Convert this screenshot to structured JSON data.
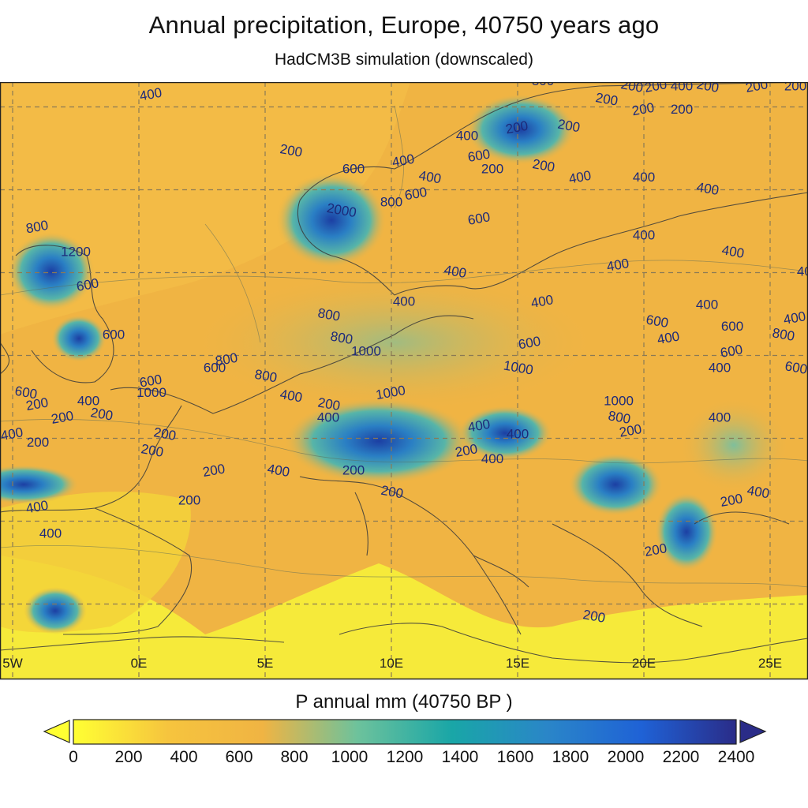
{
  "title": "Annual precipitation, Europe, 40750 years ago",
  "subtitle": "HadCM3B simulation (downscaled)",
  "map": {
    "lon_range": [
      -5.5,
      26.5
    ],
    "lat_range": [
      35.5,
      71.5
    ],
    "gridlines": "dashed",
    "lon_labels": [
      "5W",
      "0E",
      "5E",
      "10E",
      "15E",
      "20E",
      "25E"
    ],
    "lon_label_values": [
      -5,
      0,
      5,
      10,
      15,
      20,
      25
    ],
    "contour_labels": [
      {
        "text": "400",
        "lon": 0.5,
        "lat": 70.5
      },
      {
        "text": "800",
        "lon": 16.0,
        "lat": 71.3
      },
      {
        "text": "200",
        "lon": 19.5,
        "lat": 71.0
      },
      {
        "text": "200",
        "lon": 20.5,
        "lat": 71.0
      },
      {
        "text": "400",
        "lon": 21.5,
        "lat": 71.0
      },
      {
        "text": "200",
        "lon": 22.5,
        "lat": 71.0
      },
      {
        "text": "200",
        "lon": 24.5,
        "lat": 71.0
      },
      {
        "text": "200",
        "lon": 26.0,
        "lat": 71.0
      },
      {
        "text": "200",
        "lon": 18.5,
        "lat": 70.2
      },
      {
        "text": "200",
        "lon": 20.0,
        "lat": 69.6
      },
      {
        "text": "200",
        "lon": 21.5,
        "lat": 69.6
      },
      {
        "text": "200",
        "lon": 17.0,
        "lat": 68.6
      },
      {
        "text": "200",
        "lon": 15.0,
        "lat": 68.5
      },
      {
        "text": "400",
        "lon": 13.0,
        "lat": 68.0
      },
      {
        "text": "200",
        "lon": 6.0,
        "lat": 67.1
      },
      {
        "text": "600",
        "lon": 13.5,
        "lat": 66.8
      },
      {
        "text": "200",
        "lon": 14.0,
        "lat": 66.0
      },
      {
        "text": "200",
        "lon": 16.0,
        "lat": 66.2
      },
      {
        "text": "400",
        "lon": 10.5,
        "lat": 66.5
      },
      {
        "text": "600",
        "lon": 8.5,
        "lat": 66.0
      },
      {
        "text": "400",
        "lon": 11.5,
        "lat": 65.5
      },
      {
        "text": "400",
        "lon": 17.5,
        "lat": 65.5
      },
      {
        "text": "400",
        "lon": 20.0,
        "lat": 65.5
      },
      {
        "text": "400",
        "lon": 22.5,
        "lat": 64.8
      },
      {
        "text": "600",
        "lon": 11.0,
        "lat": 64.5
      },
      {
        "text": "800",
        "lon": 10.0,
        "lat": 64.0
      },
      {
        "text": "2000",
        "lon": 8.0,
        "lat": 63.5
      },
      {
        "text": "600",
        "lon": 13.5,
        "lat": 63.0
      },
      {
        "text": "400",
        "lon": 20.0,
        "lat": 62.0
      },
      {
        "text": "400",
        "lon": 27.0,
        "lat": 63.0
      },
      {
        "text": "800",
        "lon": -4.0,
        "lat": 62.5
      },
      {
        "text": "1200",
        "lon": -2.5,
        "lat": 61.0
      },
      {
        "text": "400",
        "lon": 23.5,
        "lat": 61.0
      },
      {
        "text": "400",
        "lon": 19.0,
        "lat": 60.2
      },
      {
        "text": "400",
        "lon": 26.5,
        "lat": 59.8
      },
      {
        "text": "400",
        "lon": 12.5,
        "lat": 59.8
      },
      {
        "text": "600",
        "lon": -2.0,
        "lat": 59.0
      },
      {
        "text": "400",
        "lon": 10.5,
        "lat": 58.0
      },
      {
        "text": "800",
        "lon": 7.5,
        "lat": 57.2
      },
      {
        "text": "400",
        "lon": 16.0,
        "lat": 58.0
      },
      {
        "text": "400",
        "lon": 22.5,
        "lat": 57.8
      },
      {
        "text": "600",
        "lon": 20.5,
        "lat": 56.8
      },
      {
        "text": "400",
        "lon": 21.0,
        "lat": 55.8
      },
      {
        "text": "600",
        "lon": 23.5,
        "lat": 56.5
      },
      {
        "text": "800",
        "lon": 25.5,
        "lat": 56.0
      },
      {
        "text": "400",
        "lon": 26.0,
        "lat": 57.0
      },
      {
        "text": "600",
        "lon": -1.0,
        "lat": 56.0
      },
      {
        "text": "800",
        "lon": 8.0,
        "lat": 55.8
      },
      {
        "text": "600",
        "lon": 15.5,
        "lat": 55.5
      },
      {
        "text": "1000",
        "lon": 9.0,
        "lat": 55.0
      },
      {
        "text": "1000",
        "lon": 15.0,
        "lat": 54.0
      },
      {
        "text": "800",
        "lon": 3.5,
        "lat": 54.5
      },
      {
        "text": "600",
        "lon": 3.0,
        "lat": 54.0
      },
      {
        "text": "800",
        "lon": 5.0,
        "lat": 53.5
      },
      {
        "text": "600",
        "lon": 23.5,
        "lat": 55.0
      },
      {
        "text": "400",
        "lon": 23.0,
        "lat": 54.0
      },
      {
        "text": "600",
        "lon": 26.0,
        "lat": 54.0
      },
      {
        "text": "600",
        "lon": 0.5,
        "lat": 53.2
      },
      {
        "text": "1000",
        "lon": 0.5,
        "lat": 52.5
      },
      {
        "text": "400",
        "lon": 6.0,
        "lat": 52.3
      },
      {
        "text": "1000",
        "lon": 10.0,
        "lat": 52.5
      },
      {
        "text": "1000",
        "lon": 19.0,
        "lat": 52.0
      },
      {
        "text": "600",
        "lon": -4.5,
        "lat": 52.5
      },
      {
        "text": "200",
        "lon": -4.0,
        "lat": 51.8
      },
      {
        "text": "400",
        "lon": -2.0,
        "lat": 52.0
      },
      {
        "text": "200",
        "lon": -1.5,
        "lat": 51.2
      },
      {
        "text": "200",
        "lon": -3.0,
        "lat": 51.0
      },
      {
        "text": "400",
        "lon": 7.5,
        "lat": 51.0
      },
      {
        "text": "200",
        "lon": 7.5,
        "lat": 51.8
      },
      {
        "text": "400",
        "lon": 13.5,
        "lat": 50.5
      },
      {
        "text": "400",
        "lon": 15.0,
        "lat": 50.0
      },
      {
        "text": "800",
        "lon": 19.0,
        "lat": 51.0
      },
      {
        "text": "200",
        "lon": 19.5,
        "lat": 50.2
      },
      {
        "text": "400",
        "lon": 23.0,
        "lat": 51.0
      },
      {
        "text": "200",
        "lon": 1.0,
        "lat": 50.0
      },
      {
        "text": "400",
        "lon": -5.0,
        "lat": 50.0
      },
      {
        "text": "200",
        "lon": -4.0,
        "lat": 49.5
      },
      {
        "text": "200",
        "lon": 0.5,
        "lat": 49.0
      },
      {
        "text": "200",
        "lon": 13.0,
        "lat": 49.0
      },
      {
        "text": "400",
        "lon": 14.0,
        "lat": 48.5
      },
      {
        "text": "400",
        "lon": 5.5,
        "lat": 47.8
      },
      {
        "text": "200",
        "lon": 3.0,
        "lat": 47.8
      },
      {
        "text": "200",
        "lon": 8.5,
        "lat": 47.8
      },
      {
        "text": "200",
        "lon": 10.0,
        "lat": 46.5
      },
      {
        "text": "400",
        "lon": -4.0,
        "lat": 45.6
      },
      {
        "text": "200",
        "lon": 2.0,
        "lat": 46.0
      },
      {
        "text": "400",
        "lon": 24.5,
        "lat": 46.5
      },
      {
        "text": "200",
        "lon": 23.5,
        "lat": 46.0
      },
      {
        "text": "400",
        "lon": -3.5,
        "lat": 44.0
      },
      {
        "text": "200",
        "lon": 18.0,
        "lat": 39.0
      },
      {
        "text": "200",
        "lon": 20.5,
        "lat": 43.0
      }
    ]
  },
  "colorbar": {
    "label": "P annual mm (40750 BP )",
    "min": 0,
    "max": 2400,
    "ticks": [
      "0",
      "200",
      "400",
      "600",
      "800",
      "1000",
      "1200",
      "1400",
      "1600",
      "1800",
      "2000",
      "2200",
      "2400"
    ],
    "extend": "both",
    "colors": [
      "#ffff33",
      "#f6c43e",
      "#f0b443",
      "#6dc29c",
      "#19a6a7",
      "#2a86c8",
      "#1f62d6",
      "#2a2c88"
    ],
    "under_color": "#ffff33",
    "over_color": "#2a2c88"
  }
}
